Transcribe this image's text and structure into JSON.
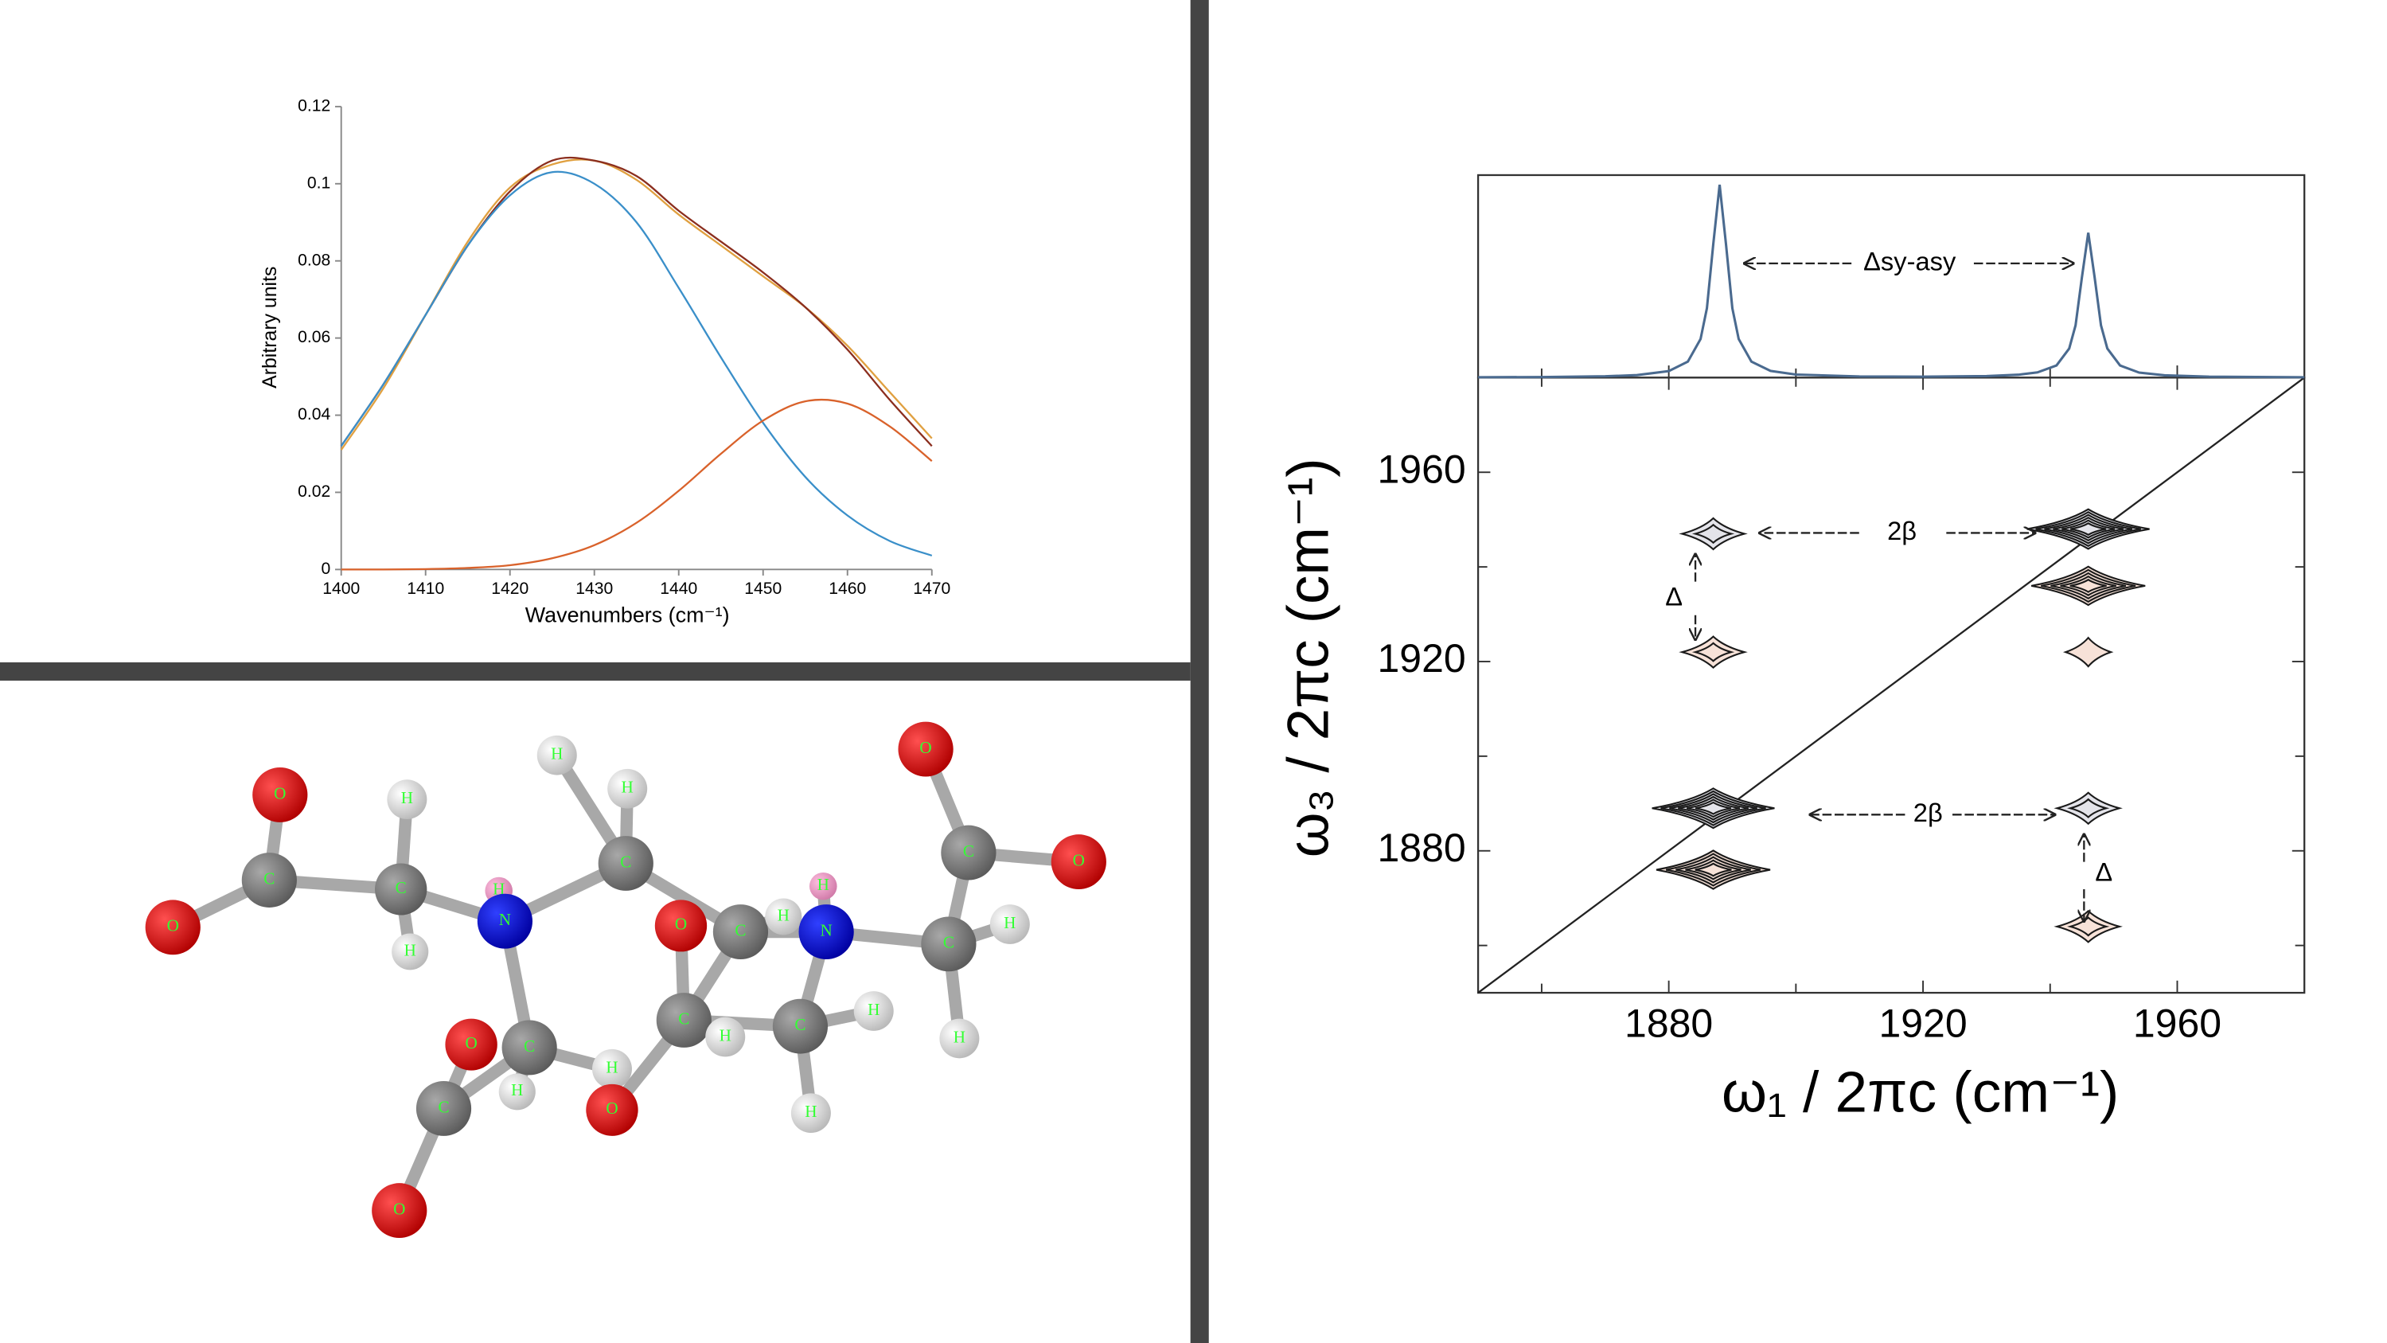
{
  "chart_data": [
    {
      "type": "line",
      "xlabel": "Wavenumbers (cm⁻¹)",
      "ylabel": "Arbitrary units",
      "x": [
        1400,
        1405,
        1410,
        1415,
        1420,
        1425,
        1430,
        1435,
        1440,
        1445,
        1450,
        1455,
        1460,
        1465,
        1470
      ],
      "series": [
        {
          "color": "#e0a040",
          "values": [
            0.031,
            0.047,
            0.066,
            0.085,
            0.099,
            0.105,
            0.106,
            0.101,
            0.092,
            0.084,
            0.076,
            0.068,
            0.058,
            0.046,
            0.034
          ]
        },
        {
          "color": "#8b2e1e",
          "values": [
            0.032,
            0.048,
            0.066,
            0.084,
            0.098,
            0.106,
            0.106,
            0.102,
            0.093,
            0.085,
            0.077,
            0.068,
            0.057,
            0.044,
            0.032
          ]
        },
        {
          "color": "#3a8fc9",
          "values": [
            0.032,
            0.048,
            0.066,
            0.084,
            0.097,
            0.103,
            0.1,
            0.09,
            0.073,
            0.055,
            0.038,
            0.024,
            0.014,
            0.0074,
            0.0036
          ]
        },
        {
          "color": "#d9622b",
          "values": [
            0,
            0,
            0.0001,
            0.0004,
            0.0011,
            0.0029,
            0.0063,
            0.0121,
            0.0204,
            0.03,
            0.0386,
            0.0436,
            0.043,
            0.0371,
            0.0281
          ]
        }
      ],
      "xlim": [
        1400,
        1470
      ],
      "xticks": [
        1400,
        1410,
        1420,
        1430,
        1440,
        1450,
        1460,
        1470
      ],
      "ylim": [
        0,
        0.12
      ],
      "yticks": [
        0,
        0.02,
        0.04,
        0.06,
        0.08,
        0.1,
        0.12
      ]
    },
    {
      "type": "contour",
      "xlabel": "ω₁ / 2πc (cm⁻¹)",
      "ylabel": "ω₃ / 2πc (cm⁻¹)",
      "xlim": [
        1850,
        1980
      ],
      "xticks": [
        1880,
        1920,
        1960
      ],
      "xminor": [
        1860,
        1900,
        1940
      ],
      "ylim": [
        1850,
        1980
      ],
      "yticks": [
        1880,
        1920,
        1960
      ],
      "yminor": [
        1860,
        1900,
        1940
      ],
      "spectrum": {
        "color": "#4a6a8f",
        "ylim": [
          0,
          1.05
        ],
        "x": [
          1850,
          1860,
          1870,
          1875,
          1880,
          1883,
          1885,
          1886,
          1887,
          1888,
          1889,
          1890,
          1891,
          1893,
          1896,
          1900,
          1910,
          1920,
          1930,
          1935,
          1938,
          1941,
          1943,
          1944,
          1945,
          1946,
          1947,
          1948,
          1949,
          1951,
          1954,
          1958,
          1965,
          1980
        ],
        "values": [
          0.002,
          0.003,
          0.007,
          0.013,
          0.034,
          0.083,
          0.2,
          0.36,
          0.692,
          1.0,
          0.692,
          0.36,
          0.2,
          0.083,
          0.035,
          0.016,
          0.006,
          0.005,
          0.008,
          0.015,
          0.027,
          0.063,
          0.151,
          0.271,
          0.52,
          0.751,
          0.52,
          0.271,
          0.151,
          0.063,
          0.026,
          0.012,
          0.005,
          0.002
        ]
      },
      "peaks": [
        {
          "x": 1887,
          "y": 1947,
          "amplitude": 0.3,
          "color": "#e4e4ea"
        },
        {
          "x": 1887,
          "y": 1922,
          "amplitude": 0.3,
          "color": "#f7e2d8"
        },
        {
          "x": 1946,
          "y": 1948,
          "amplitude": 1.0,
          "color": "#e4e4ea"
        },
        {
          "x": 1946,
          "y": 1936,
          "amplitude": 0.9,
          "color": "#f7e2d8"
        },
        {
          "x": 1946,
          "y": 1922,
          "amplitude": 0.1,
          "color": "#f7e2d8"
        },
        {
          "x": 1887,
          "y": 1889,
          "amplitude": 1.0,
          "color": "#e4e4ea"
        },
        {
          "x": 1887,
          "y": 1876,
          "amplitude": 0.9,
          "color": "#f7e2d8"
        },
        {
          "x": 1946,
          "y": 1889,
          "amplitude": 0.3,
          "color": "#e4e4ea"
        },
        {
          "x": 1946,
          "y": 1864,
          "amplitude": 0.3,
          "color": "#f7e2d8"
        }
      ],
      "annotations": [
        "Δsy-asy",
        "2β",
        "Δ",
        "2β",
        "Δ"
      ]
    }
  ],
  "molecule": {
    "atoms": [
      "O",
      "O",
      "C",
      "H",
      "C",
      "H",
      "H",
      "N",
      "H",
      "C",
      "H",
      "O",
      "C",
      "H",
      "H",
      "N",
      "C",
      "H",
      "H",
      "O",
      "C",
      "O",
      "C",
      "H",
      "C",
      "H",
      "H",
      "C",
      "H",
      "O",
      "H",
      "O",
      "C",
      "O"
    ]
  }
}
